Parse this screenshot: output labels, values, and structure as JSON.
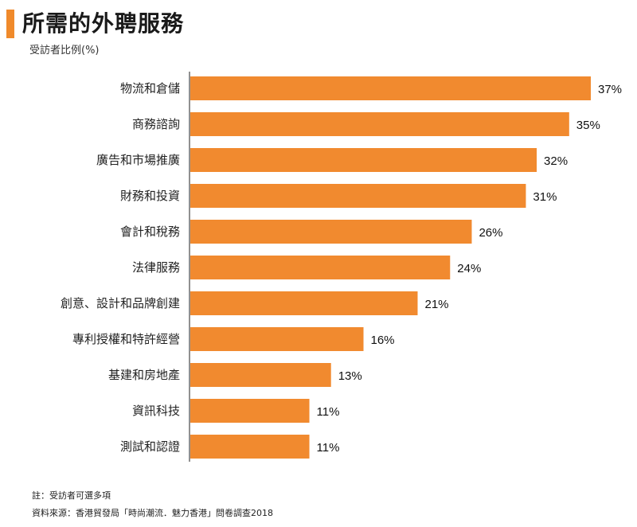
{
  "title": "所需的外聘服務",
  "subtitle": "受訪者比例(%)",
  "notes": [
    "註：受訪者可選多項",
    "資料來源：香港貿發局「時尚潮流．魅力香港」問卷調查2018"
  ],
  "colors": {
    "bar": "#f18a2f",
    "accent": "#f08a2b",
    "axis": "#222222"
  },
  "chart_data": {
    "type": "bar",
    "orientation": "horizontal",
    "title": "所需的外聘服務",
    "ylabel": "受訪者比例(%)",
    "xlim": [
      0,
      37
    ],
    "value_suffix": "%",
    "categories": [
      "物流和倉儲",
      "商務諮詢",
      "廣告和市場推廣",
      "財務和投資",
      "會計和稅務",
      "法律服務",
      "創意、設計和品牌創建",
      "專利授權和特許經營",
      "基建和房地產",
      "資訊科技",
      "測試和認證"
    ],
    "values": [
      37,
      35,
      32,
      31,
      26,
      24,
      21,
      16,
      13,
      11,
      11
    ]
  }
}
